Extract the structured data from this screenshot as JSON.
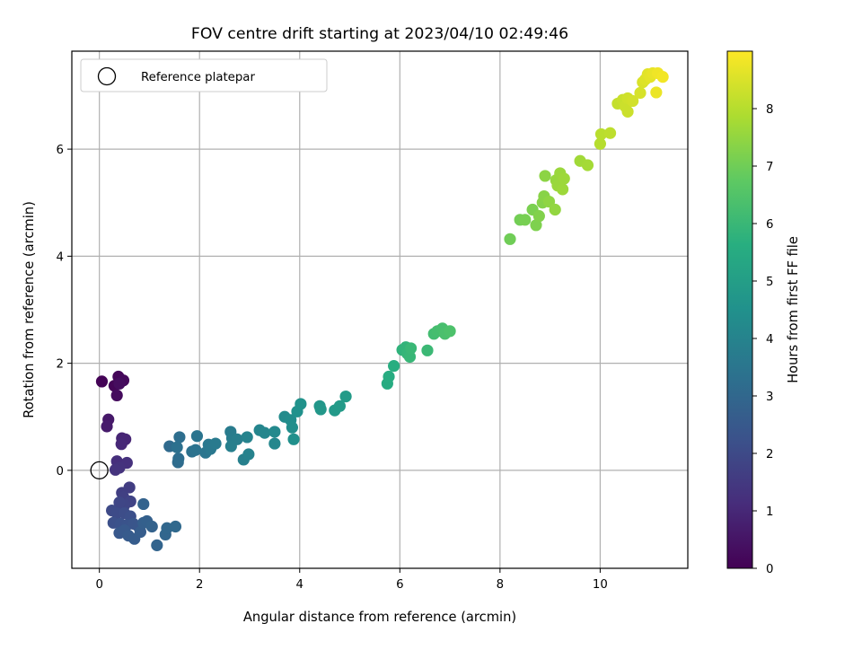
{
  "chart_data": {
    "type": "scatter",
    "title": "FOV centre drift starting at 2023/04/10 02:49:46",
    "xlabel": "Angular distance from reference (arcmin)",
    "ylabel": "Rotation from reference (arcmin)",
    "xlim": [
      -0.55,
      11.75
    ],
    "ylim": [
      -1.83,
      7.83
    ],
    "xticks": [
      0,
      2,
      4,
      6,
      8,
      10
    ],
    "yticks": [
      0,
      2,
      4,
      6
    ],
    "grid": true,
    "legend": {
      "placement": "top-left",
      "entries": [
        {
          "label": "Reference platepar",
          "marker": "open-circle"
        }
      ]
    },
    "reference_point": {
      "x": 0,
      "y": 0
    },
    "colorbar": {
      "label": "Hours from first FF file",
      "colormap": "viridis",
      "range": [
        0,
        9
      ],
      "ticks": [
        0,
        1,
        2,
        3,
        4,
        5,
        6,
        7,
        8
      ]
    },
    "points": [
      {
        "x": 0.05,
        "y": 1.66,
        "h": 0.05
      },
      {
        "x": 0.3,
        "y": 1.58,
        "h": 0.1
      },
      {
        "x": 0.38,
        "y": 1.75,
        "h": 0.15
      },
      {
        "x": 0.48,
        "y": 1.68,
        "h": 0.2
      },
      {
        "x": 0.35,
        "y": 1.4,
        "h": 0.25
      },
      {
        "x": 0.4,
        "y": 1.62,
        "h": 0.3
      },
      {
        "x": 0.18,
        "y": 0.95,
        "h": 0.6
      },
      {
        "x": 0.15,
        "y": 0.82,
        "h": 0.65
      },
      {
        "x": 0.45,
        "y": 0.6,
        "h": 0.9
      },
      {
        "x": 0.52,
        "y": 0.58,
        "h": 0.95
      },
      {
        "x": 0.44,
        "y": 0.49,
        "h": 1.0
      },
      {
        "x": 0.35,
        "y": 0.17,
        "h": 1.2
      },
      {
        "x": 0.55,
        "y": 0.14,
        "h": 1.25
      },
      {
        "x": 0.4,
        "y": 0.05,
        "h": 1.3
      },
      {
        "x": 0.32,
        "y": 0.01,
        "h": 1.35
      },
      {
        "x": 0.6,
        "y": -0.32,
        "h": 1.6
      },
      {
        "x": 0.45,
        "y": -0.42,
        "h": 1.65
      },
      {
        "x": 0.48,
        "y": -0.5,
        "h": 1.7
      },
      {
        "x": 0.62,
        "y": -0.58,
        "h": 1.8
      },
      {
        "x": 0.5,
        "y": -0.65,
        "h": 1.85
      },
      {
        "x": 0.4,
        "y": -0.6,
        "h": 1.9
      },
      {
        "x": 0.25,
        "y": -0.75,
        "h": 2.0
      },
      {
        "x": 0.35,
        "y": -0.8,
        "h": 2.05
      },
      {
        "x": 0.5,
        "y": -0.8,
        "h": 2.1
      },
      {
        "x": 0.62,
        "y": -0.86,
        "h": 2.15
      },
      {
        "x": 0.28,
        "y": -0.98,
        "h": 2.2
      },
      {
        "x": 0.42,
        "y": -1.0,
        "h": 2.25
      },
      {
        "x": 0.55,
        "y": -1.02,
        "h": 2.3
      },
      {
        "x": 0.68,
        "y": -1.0,
        "h": 2.35
      },
      {
        "x": 0.78,
        "y": -1.05,
        "h": 2.4
      },
      {
        "x": 0.4,
        "y": -1.17,
        "h": 2.45
      },
      {
        "x": 0.5,
        "y": -1.12,
        "h": 2.5
      },
      {
        "x": 0.58,
        "y": -1.22,
        "h": 2.55
      },
      {
        "x": 0.7,
        "y": -1.28,
        "h": 2.6
      },
      {
        "x": 0.82,
        "y": -1.15,
        "h": 2.65
      },
      {
        "x": 0.88,
        "y": -0.98,
        "h": 2.7
      },
      {
        "x": 0.95,
        "y": -0.95,
        "h": 2.75
      },
      {
        "x": 1.05,
        "y": -1.05,
        "h": 2.8
      },
      {
        "x": 0.88,
        "y": -0.63,
        "h": 2.85
      },
      {
        "x": 1.15,
        "y": -1.4,
        "h": 2.9
      },
      {
        "x": 1.32,
        "y": -1.2,
        "h": 2.95
      },
      {
        "x": 1.35,
        "y": -1.08,
        "h": 3.0
      },
      {
        "x": 1.52,
        "y": -1.05,
        "h": 3.05
      },
      {
        "x": 1.4,
        "y": 0.45,
        "h": 3.1
      },
      {
        "x": 1.57,
        "y": 0.15,
        "h": 3.15
      },
      {
        "x": 1.58,
        "y": 0.22,
        "h": 3.2
      },
      {
        "x": 1.6,
        "y": 0.62,
        "h": 3.25
      },
      {
        "x": 1.55,
        "y": 0.43,
        "h": 3.3
      },
      {
        "x": 1.85,
        "y": 0.35,
        "h": 3.35
      },
      {
        "x": 1.92,
        "y": 0.38,
        "h": 3.4
      },
      {
        "x": 1.95,
        "y": 0.64,
        "h": 3.45
      },
      {
        "x": 2.12,
        "y": 0.33,
        "h": 3.5
      },
      {
        "x": 2.18,
        "y": 0.48,
        "h": 3.55
      },
      {
        "x": 2.22,
        "y": 0.4,
        "h": 3.6
      },
      {
        "x": 2.32,
        "y": 0.5,
        "h": 3.65
      },
      {
        "x": 2.62,
        "y": 0.72,
        "h": 3.7
      },
      {
        "x": 2.65,
        "y": 0.6,
        "h": 3.75
      },
      {
        "x": 2.75,
        "y": 0.58,
        "h": 3.8
      },
      {
        "x": 2.63,
        "y": 0.45,
        "h": 3.85
      },
      {
        "x": 2.88,
        "y": 0.2,
        "h": 3.9
      },
      {
        "x": 2.98,
        "y": 0.3,
        "h": 3.95
      },
      {
        "x": 2.95,
        "y": 0.62,
        "h": 4.0
      },
      {
        "x": 3.2,
        "y": 0.75,
        "h": 4.05
      },
      {
        "x": 3.3,
        "y": 0.7,
        "h": 4.1
      },
      {
        "x": 3.5,
        "y": 0.5,
        "h": 4.15
      },
      {
        "x": 3.5,
        "y": 0.72,
        "h": 4.2
      },
      {
        "x": 3.7,
        "y": 1.0,
        "h": 4.3
      },
      {
        "x": 3.82,
        "y": 0.94,
        "h": 4.35
      },
      {
        "x": 3.85,
        "y": 0.8,
        "h": 4.4
      },
      {
        "x": 3.88,
        "y": 0.58,
        "h": 4.45
      },
      {
        "x": 3.95,
        "y": 1.1,
        "h": 4.5
      },
      {
        "x": 4.02,
        "y": 1.24,
        "h": 4.55
      },
      {
        "x": 4.4,
        "y": 1.2,
        "h": 4.7
      },
      {
        "x": 4.42,
        "y": 1.14,
        "h": 4.75
      },
      {
        "x": 4.7,
        "y": 1.12,
        "h": 4.8
      },
      {
        "x": 4.8,
        "y": 1.2,
        "h": 4.85
      },
      {
        "x": 4.92,
        "y": 1.38,
        "h": 4.9
      },
      {
        "x": 5.75,
        "y": 1.62,
        "h": 5.5
      },
      {
        "x": 5.78,
        "y": 1.75,
        "h": 5.55
      },
      {
        "x": 5.88,
        "y": 1.95,
        "h": 5.6
      },
      {
        "x": 6.05,
        "y": 2.25,
        "h": 5.8
      },
      {
        "x": 6.12,
        "y": 2.3,
        "h": 5.85
      },
      {
        "x": 6.15,
        "y": 2.18,
        "h": 5.9
      },
      {
        "x": 6.2,
        "y": 2.12,
        "h": 5.95
      },
      {
        "x": 6.22,
        "y": 2.28,
        "h": 6.0
      },
      {
        "x": 6.55,
        "y": 2.24,
        "h": 6.05
      },
      {
        "x": 6.68,
        "y": 2.55,
        "h": 6.2
      },
      {
        "x": 6.75,
        "y": 2.6,
        "h": 6.25
      },
      {
        "x": 6.85,
        "y": 2.65,
        "h": 6.3
      },
      {
        "x": 6.9,
        "y": 2.55,
        "h": 6.35
      },
      {
        "x": 7.0,
        "y": 2.6,
        "h": 6.4
      },
      {
        "x": 8.2,
        "y": 4.32,
        "h": 7.0
      },
      {
        "x": 8.4,
        "y": 4.68,
        "h": 7.05
      },
      {
        "x": 8.5,
        "y": 4.68,
        "h": 7.1
      },
      {
        "x": 8.65,
        "y": 4.87,
        "h": 7.15
      },
      {
        "x": 8.72,
        "y": 4.58,
        "h": 7.2
      },
      {
        "x": 8.78,
        "y": 4.75,
        "h": 7.25
      },
      {
        "x": 8.85,
        "y": 5.0,
        "h": 7.3
      },
      {
        "x": 8.88,
        "y": 5.12,
        "h": 7.35
      },
      {
        "x": 8.9,
        "y": 5.5,
        "h": 7.4
      },
      {
        "x": 8.98,
        "y": 5.02,
        "h": 7.45
      },
      {
        "x": 9.1,
        "y": 4.87,
        "h": 7.5
      },
      {
        "x": 9.12,
        "y": 5.42,
        "h": 7.55
      },
      {
        "x": 9.15,
        "y": 5.32,
        "h": 7.6
      },
      {
        "x": 9.2,
        "y": 5.55,
        "h": 7.6
      },
      {
        "x": 9.25,
        "y": 5.25,
        "h": 7.65
      },
      {
        "x": 9.28,
        "y": 5.45,
        "h": 7.65
      },
      {
        "x": 9.6,
        "y": 5.78,
        "h": 7.7
      },
      {
        "x": 9.75,
        "y": 5.7,
        "h": 7.75
      },
      {
        "x": 10.0,
        "y": 6.1,
        "h": 8.0
      },
      {
        "x": 10.02,
        "y": 6.28,
        "h": 8.05
      },
      {
        "x": 10.2,
        "y": 6.3,
        "h": 8.1
      },
      {
        "x": 10.35,
        "y": 6.85,
        "h": 8.2
      },
      {
        "x": 10.45,
        "y": 6.92,
        "h": 8.25
      },
      {
        "x": 10.5,
        "y": 6.8,
        "h": 8.3
      },
      {
        "x": 10.55,
        "y": 6.7,
        "h": 8.3
      },
      {
        "x": 10.55,
        "y": 6.95,
        "h": 8.35
      },
      {
        "x": 10.65,
        "y": 6.9,
        "h": 8.4
      },
      {
        "x": 10.8,
        "y": 7.05,
        "h": 8.45
      },
      {
        "x": 10.85,
        "y": 7.25,
        "h": 8.5
      },
      {
        "x": 10.9,
        "y": 7.3,
        "h": 8.55
      },
      {
        "x": 10.95,
        "y": 7.4,
        "h": 8.6
      },
      {
        "x": 11.0,
        "y": 7.35,
        "h": 8.65
      },
      {
        "x": 11.05,
        "y": 7.42,
        "h": 8.7
      },
      {
        "x": 11.12,
        "y": 7.06,
        "h": 8.75
      },
      {
        "x": 11.15,
        "y": 7.42,
        "h": 8.8
      },
      {
        "x": 11.25,
        "y": 7.35,
        "h": 8.85
      }
    ]
  }
}
